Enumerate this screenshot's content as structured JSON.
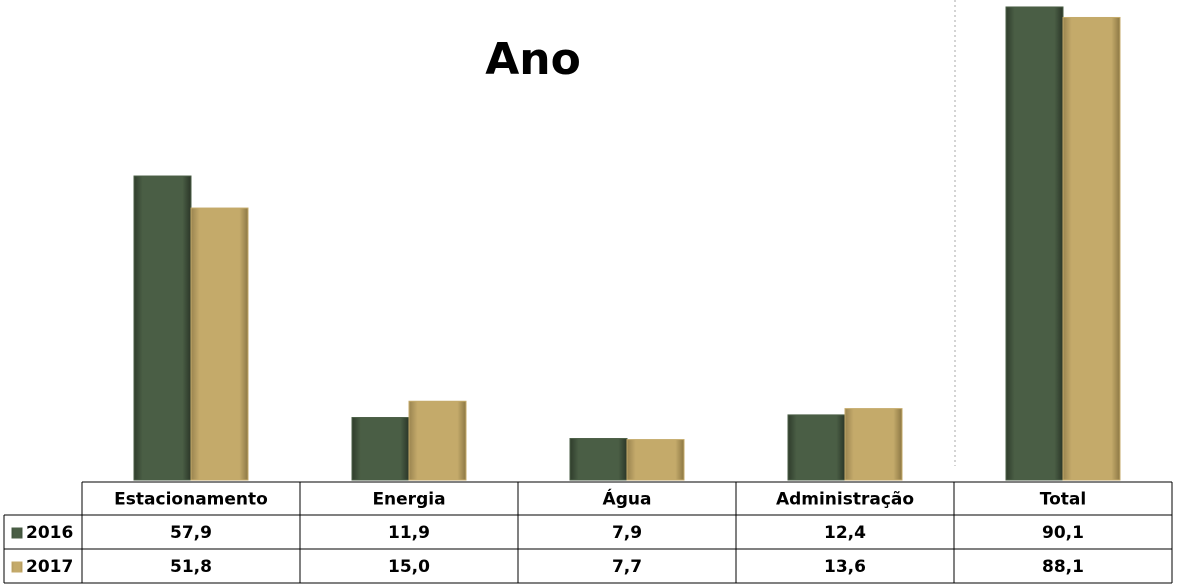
{
  "chart_data": {
    "type": "bar",
    "title": "Ano",
    "categories": [
      "Estacionamento",
      "Energia",
      "Água",
      "Administração",
      "Total"
    ],
    "series": [
      {
        "name": "2016",
        "color": "#4a5e45",
        "values": [
          57.9,
          11.9,
          7.9,
          12.4,
          90.1
        ],
        "value_labels": [
          "57,9",
          "11,9",
          "7,9",
          "12,4",
          "90,1"
        ]
      },
      {
        "name": "2017",
        "color": "#c4aa6a",
        "values": [
          51.8,
          15.0,
          7.7,
          13.6,
          88.1
        ],
        "value_labels": [
          "51,8",
          "15,0",
          "7,7",
          "13,6",
          "88,1"
        ]
      }
    ]
  }
}
